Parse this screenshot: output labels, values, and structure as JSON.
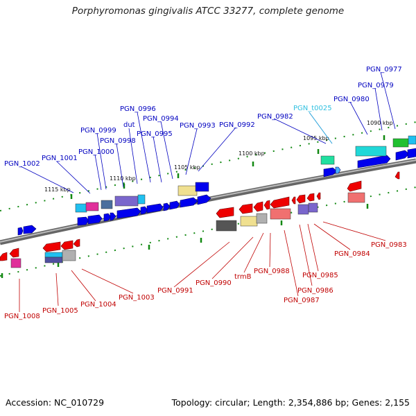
{
  "title": "Porphyromonas gingivalis ATCC 33277, complete genome",
  "footer": {
    "accession": "Accession: NC_010729",
    "topology": "Topology: circular; Length: 2,354,886 bp; Genes: 2,155"
  },
  "colors": {
    "forward_label": "#0000c0",
    "reverse_label": "#c00000",
    "trna_label": "#30c0e0",
    "backbone": "#888888",
    "forward_gene": "#0000ee",
    "reverse_gene": "#ee0000",
    "tick": "#118811"
  },
  "scale_labels": [
    "1115 kbp",
    "1110 kbp",
    "1105 kbp",
    "1100 kbp",
    "1095 kbp",
    "1090 kbp"
  ],
  "forward_labels": [
    "PGN_0977",
    "PGN_0979",
    "PGN_0980",
    "PGN_t0025",
    "PGN_0982",
    "PGN_0992",
    "PGN_0993",
    "PGN_0994",
    "PGN_0995",
    "PGN_0996",
    "dut",
    "PGN_0998",
    "PGN_0999",
    "PGN_1000",
    "PGN_1001",
    "PGN_1002"
  ],
  "reverse_labels": [
    "PGN_0983",
    "PGN_0984",
    "PGN_0985",
    "PGN_0986",
    "PGN_0987",
    "PGN_0988",
    "trmB",
    "PGN_0990",
    "PGN_0991",
    "PGN_1003",
    "PGN_1004",
    "PGN_1005",
    "PGN_1008"
  ]
}
